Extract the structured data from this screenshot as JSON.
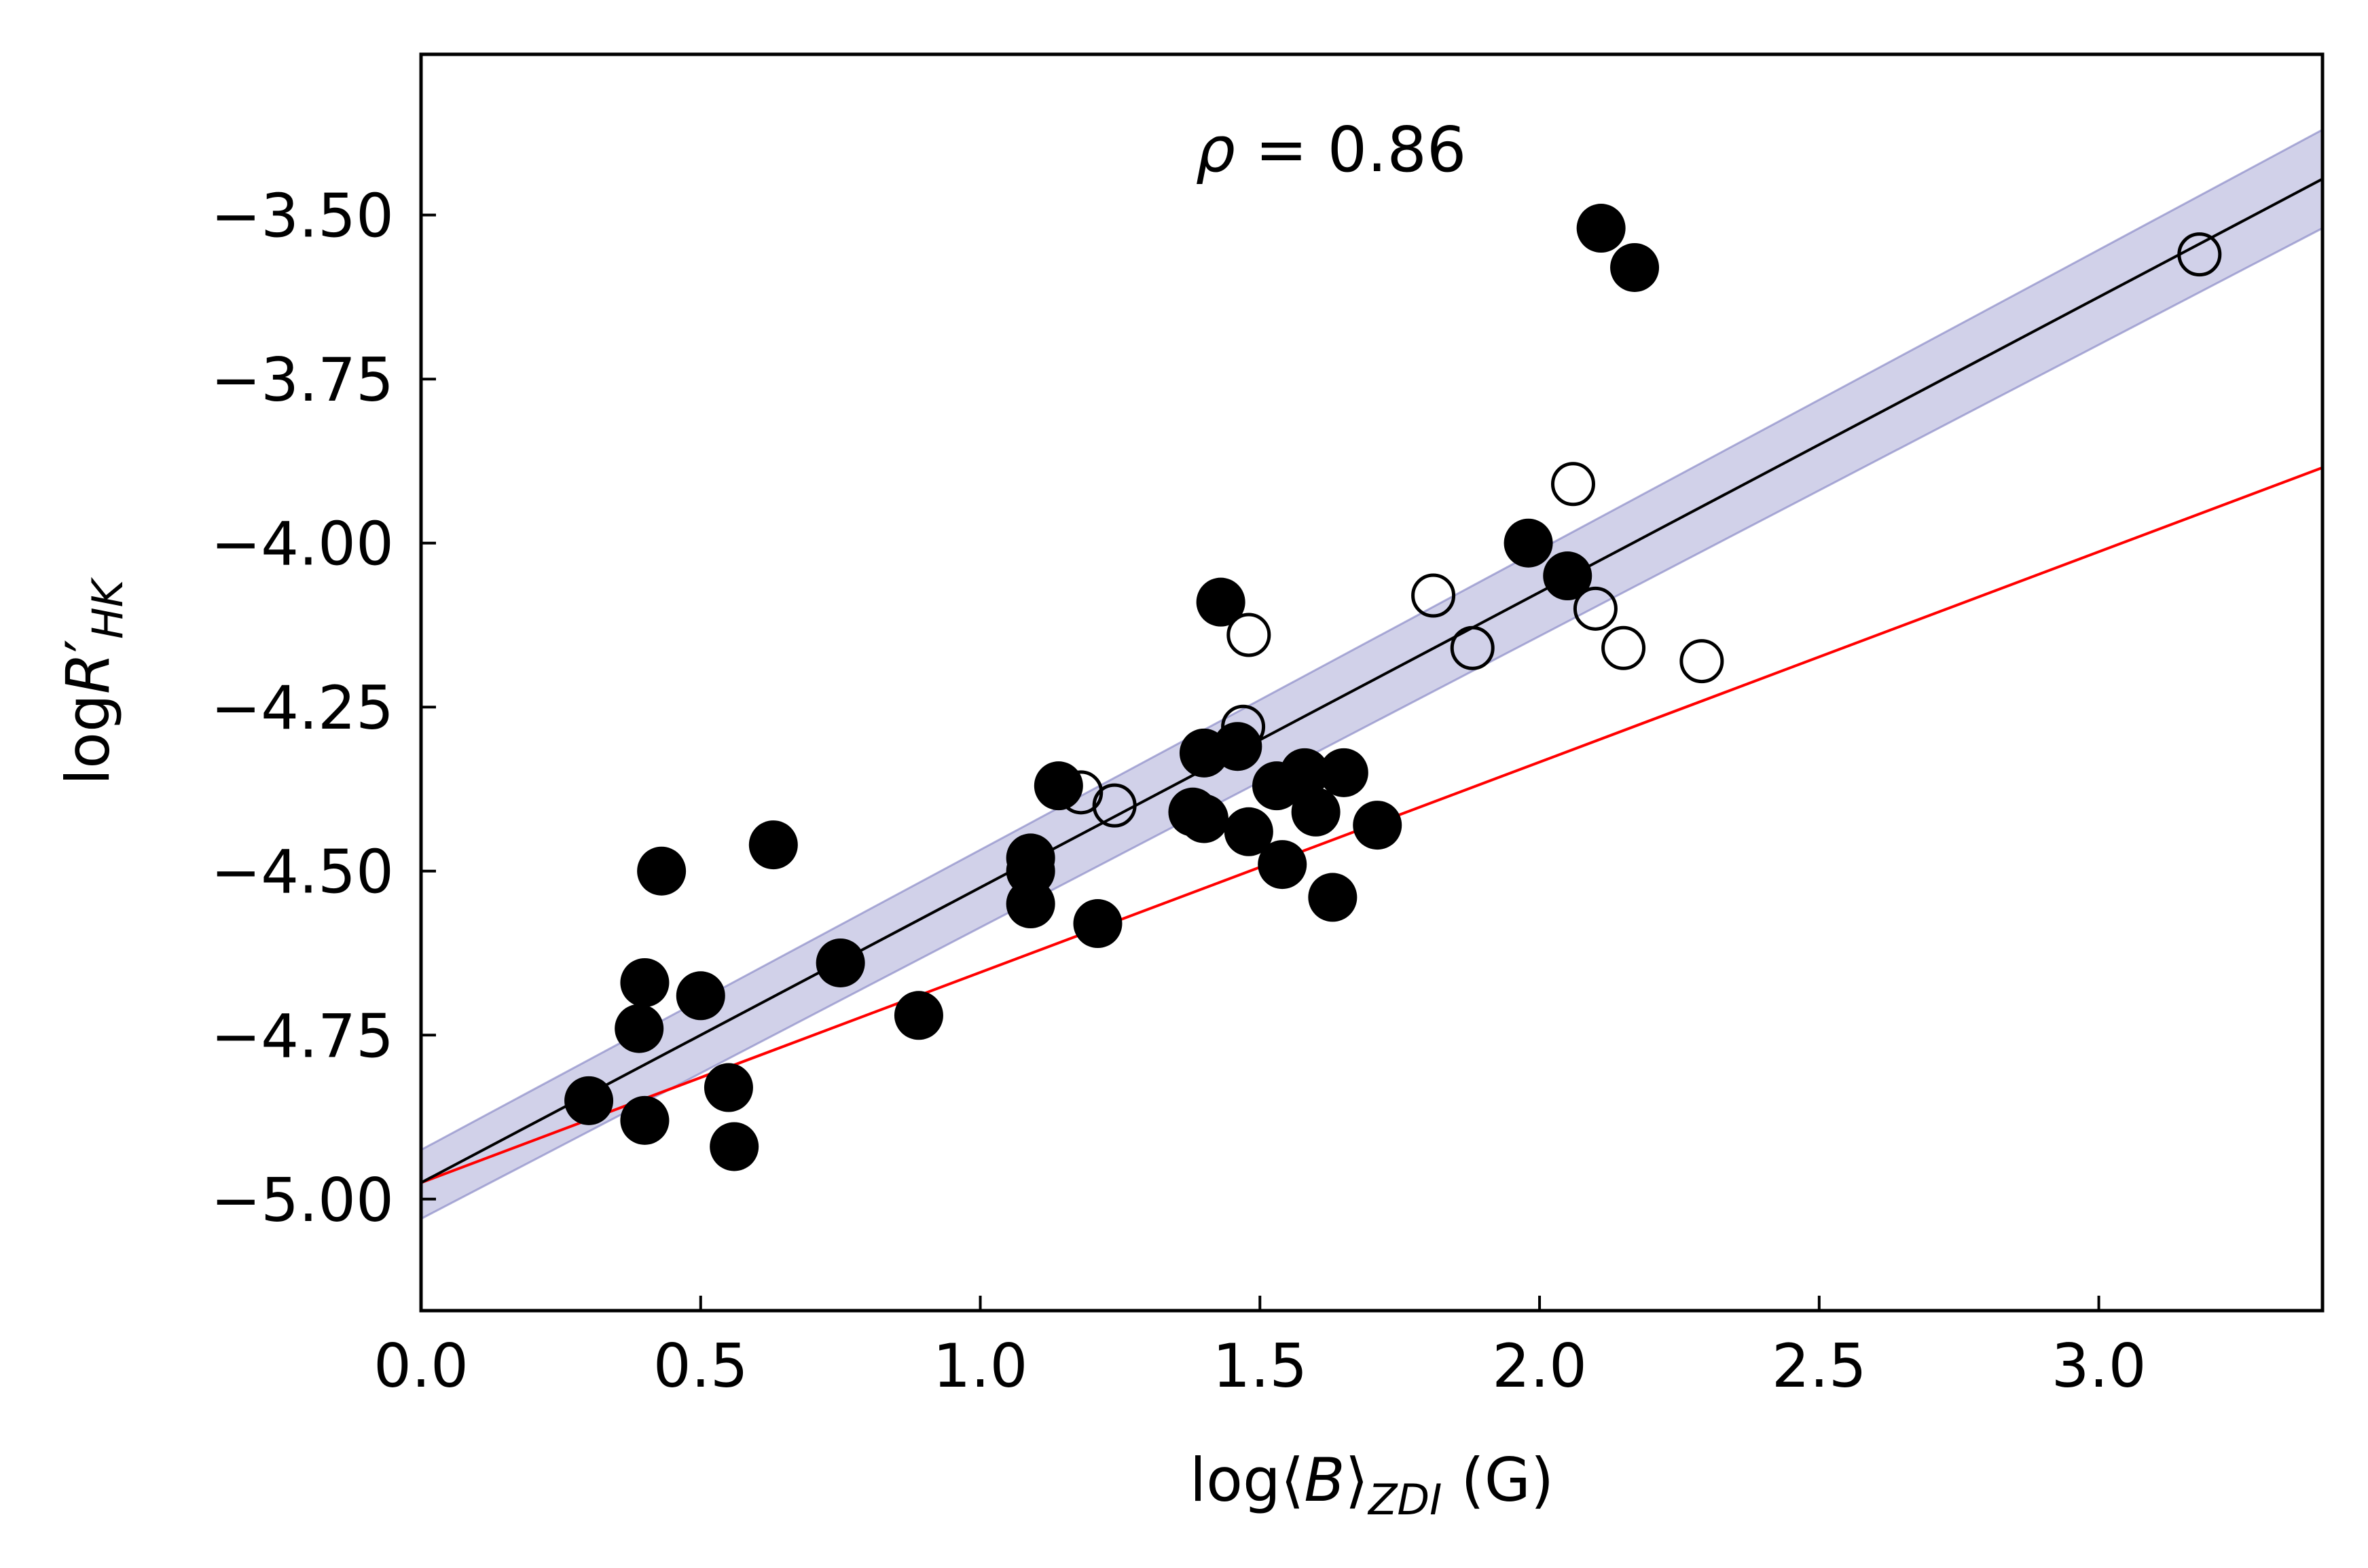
{
  "chart_data": {
    "type": "scatter",
    "title": "",
    "annotation": "ρ = 0.86",
    "annotation_parts": {
      "symbol": "ρ",
      "eq": " = ",
      "value": "0.86"
    },
    "xlabel": {
      "pre": "log⟨",
      "var": "B",
      "post": "⟩",
      "sub": "ZDI",
      "unit": " (G)"
    },
    "ylabel": {
      "pre": "log",
      "var": "R",
      "prime": "′",
      "sub": "HK"
    },
    "xlim": [
      0.0,
      3.4
    ],
    "ylim": [
      -5.17,
      -3.255
    ],
    "xticks": [
      0.0,
      0.5,
      1.0,
      1.5,
      2.0,
      2.5,
      3.0
    ],
    "xtick_labels": [
      "0.0",
      "0.5",
      "1.0",
      "1.5",
      "2.0",
      "2.5",
      "3.0"
    ],
    "yticks": [
      -3.5,
      -3.75,
      -4.0,
      -4.25,
      -4.5,
      -4.75,
      -5.0
    ],
    "ytick_labels": [
      "−3.50",
      "−3.75",
      "−4.00",
      "−4.25",
      "−4.50",
      "−4.75",
      "−5.00"
    ],
    "fit_line": {
      "x": [
        0.0,
        3.4
      ],
      "y": [
        -4.975,
        -3.445
      ],
      "color": "#000000"
    },
    "confidence_band": {
      "x": [
        0.0,
        3.4
      ],
      "upper": [
        -4.925,
        -3.37
      ],
      "lower": [
        -5.03,
        -3.52
      ],
      "color": "#8c8cc8"
    },
    "reference_line": {
      "x": [
        0.0,
        3.4
      ],
      "y": [
        -4.975,
        -3.885
      ],
      "color": "#ff0000"
    },
    "series": [
      {
        "name": "filled",
        "marker": "filled-circle",
        "points": [
          [
            0.3,
            -4.85
          ],
          [
            0.39,
            -4.74
          ],
          [
            0.4,
            -4.67
          ],
          [
            0.4,
            -4.88
          ],
          [
            0.43,
            -4.5
          ],
          [
            0.5,
            -4.69
          ],
          [
            0.55,
            -4.83
          ],
          [
            0.56,
            -4.92
          ],
          [
            0.63,
            -4.46
          ],
          [
            0.75,
            -4.64
          ],
          [
            0.89,
            -4.72
          ],
          [
            1.09,
            -4.48
          ],
          [
            1.09,
            -4.5
          ],
          [
            1.09,
            -4.55
          ],
          [
            1.14,
            -4.37
          ],
          [
            1.21,
            -4.58
          ],
          [
            1.38,
            -4.41
          ],
          [
            1.4,
            -4.32
          ],
          [
            1.4,
            -4.42
          ],
          [
            1.43,
            -4.09
          ],
          [
            1.46,
            -4.31
          ],
          [
            1.48,
            -4.44
          ],
          [
            1.53,
            -4.37
          ],
          [
            1.54,
            -4.49
          ],
          [
            1.58,
            -4.35
          ],
          [
            1.6,
            -4.41
          ],
          [
            1.63,
            -4.54
          ],
          [
            1.65,
            -4.35
          ],
          [
            1.71,
            -4.43
          ],
          [
            1.98,
            -4.0
          ],
          [
            2.05,
            -4.05
          ],
          [
            2.11,
            -3.52
          ],
          [
            2.17,
            -3.58
          ]
        ]
      },
      {
        "name": "open",
        "marker": "open-circle",
        "points": [
          [
            1.18,
            -4.38
          ],
          [
            1.24,
            -4.4
          ],
          [
            1.47,
            -4.28
          ],
          [
            1.48,
            -4.14
          ],
          [
            1.81,
            -4.08
          ],
          [
            1.88,
            -4.16
          ],
          [
            2.06,
            -3.91
          ],
          [
            2.1,
            -4.1
          ],
          [
            2.15,
            -4.16
          ],
          [
            2.29,
            -4.18
          ],
          [
            3.18,
            -3.56
          ]
        ]
      }
    ]
  }
}
